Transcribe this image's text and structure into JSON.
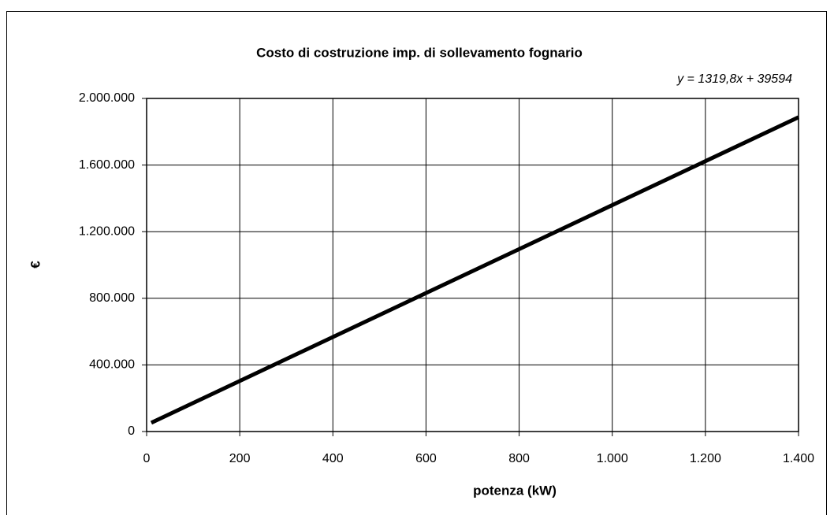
{
  "chart_data": {
    "type": "line",
    "title": "Costo di costruzione imp. di sollevamento fognario",
    "annotation": "y = 1319,8x + 39594",
    "x_label": "potenza (kW)",
    "y_label": "€",
    "x": [
      10,
      1400
    ],
    "values": [
      52792,
      1887314
    ],
    "color": "#000000",
    "xlim": [
      0,
      1400
    ],
    "xticks": [
      0,
      200,
      400,
      600,
      800,
      {
        "value": 1000,
        "label": "1.000"
      },
      {
        "value": 1200,
        "label": "1.200"
      },
      {
        "value": 1400,
        "label": "1.400"
      }
    ],
    "ylim": [
      0,
      2000000
    ],
    "yticks": [
      0,
      {
        "value": 400000,
        "label": "400.000"
      },
      {
        "value": 800000,
        "label": "800.000"
      },
      {
        "value": 1200000,
        "label": "1.200.000"
      },
      {
        "value": 1600000,
        "label": "1.600.000"
      },
      {
        "value": 2000000,
        "label": "2.000.000"
      }
    ],
    "grid": true
  }
}
